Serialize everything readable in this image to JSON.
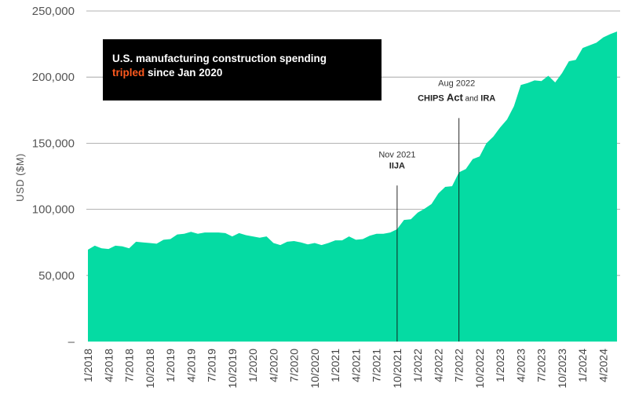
{
  "chart_data": {
    "type": "area",
    "ylabel": "USD ($M)",
    "xlabel": "",
    "ylim": [
      0,
      250000
    ],
    "grid": true,
    "fill_color": "#05dba3",
    "y_ticks": [
      {
        "value": 0,
        "label": "–"
      },
      {
        "value": 50000,
        "label": "50,000"
      },
      {
        "value": 100000,
        "label": "100,000"
      },
      {
        "value": 150000,
        "label": "150,000"
      },
      {
        "value": 200000,
        "label": "200,000"
      },
      {
        "value": 250000,
        "label": "250,000"
      }
    ],
    "x_ticks": [
      "1/2018",
      "4/2018",
      "7/2018",
      "10/2018",
      "1/2019",
      "4/2019",
      "7/2019",
      "10/2019",
      "1/2020",
      "4/2020",
      "7/2020",
      "10/2020",
      "1/2021",
      "4/2021",
      "7/2021",
      "10/2021",
      "1/2022",
      "4/2022",
      "7/2022",
      "10/2022",
      "1/2023",
      "4/2023",
      "7/2023",
      "10/2023",
      "1/2024",
      "4/2024"
    ],
    "x": [
      "2018-01",
      "2018-02",
      "2018-03",
      "2018-04",
      "2018-05",
      "2018-06",
      "2018-07",
      "2018-08",
      "2018-09",
      "2018-10",
      "2018-11",
      "2018-12",
      "2019-01",
      "2019-02",
      "2019-03",
      "2019-04",
      "2019-05",
      "2019-06",
      "2019-07",
      "2019-08",
      "2019-09",
      "2019-10",
      "2019-11",
      "2019-12",
      "2020-01",
      "2020-02",
      "2020-03",
      "2020-04",
      "2020-05",
      "2020-06",
      "2020-07",
      "2020-08",
      "2020-09",
      "2020-10",
      "2020-11",
      "2020-12",
      "2021-01",
      "2021-02",
      "2021-03",
      "2021-04",
      "2021-05",
      "2021-06",
      "2021-07",
      "2021-08",
      "2021-09",
      "2021-10",
      "2021-11",
      "2021-12",
      "2022-01",
      "2022-02",
      "2022-03",
      "2022-04",
      "2022-05",
      "2022-06",
      "2022-07",
      "2022-08",
      "2022-09",
      "2022-10",
      "2022-11",
      "2022-12",
      "2023-01",
      "2023-02",
      "2023-03",
      "2023-04",
      "2023-05",
      "2023-06",
      "2023-07",
      "2023-08",
      "2023-09",
      "2023-10",
      "2023-11",
      "2023-12",
      "2024-01",
      "2024-02",
      "2024-03",
      "2024-04",
      "2024-05",
      "2024-06"
    ],
    "values": [
      69500,
      72500,
      70500,
      70000,
      72500,
      72000,
      70500,
      75500,
      75000,
      74500,
      74000,
      77000,
      77500,
      81000,
      81500,
      83000,
      81500,
      82500,
      82500,
      82500,
      82000,
      79500,
      82000,
      80500,
      79500,
      78500,
      79500,
      74500,
      73000,
      75500,
      76000,
      75000,
      73500,
      74500,
      73000,
      74500,
      76500,
      76500,
      79500,
      77000,
      77500,
      80000,
      81500,
      81500,
      82500,
      85000,
      92000,
      92500,
      97500,
      100500,
      104000,
      112000,
      117000,
      117500,
      128000,
      130500,
      138000,
      140000,
      150000,
      155000,
      162000,
      168000,
      178000,
      194000,
      195500,
      197500,
      197000,
      201000,
      196000,
      203000,
      212000,
      213000,
      222000,
      224000,
      226000,
      230000,
      232500,
      234500
    ],
    "annotations": [
      {
        "date": "2021-10",
        "line_top": 118000,
        "label_date": "Nov 2021",
        "label_bold": "IIJA"
      },
      {
        "date": "2022-07",
        "line_top": 169000,
        "label_date": "Aug 2022",
        "label_part1": "CHIPS",
        "label_part2": "Act",
        "label_part3": "and",
        "label_part4": "IRA"
      }
    ]
  },
  "title_box": {
    "line1": "U.S. manufacturing construction spending",
    "highlight": "tripled",
    "line2_rest": " since Jan 2020",
    "highlight_color": "#ff5a1f",
    "background": "#000000"
  }
}
